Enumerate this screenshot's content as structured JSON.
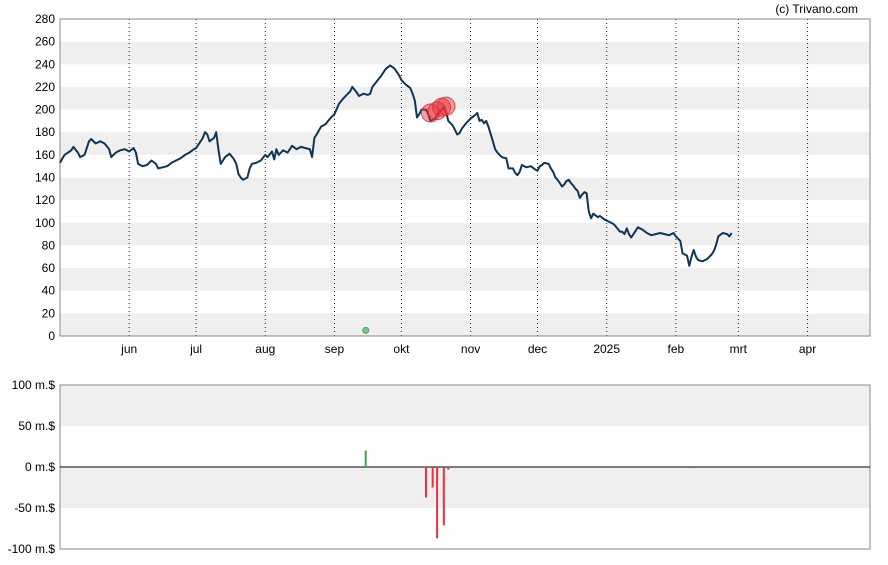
{
  "credit": "(c) Trivano.com",
  "chart_data": [
    {
      "type": "line",
      "name": "price-chart",
      "ylim": [
        0,
        280
      ],
      "y_ticks": [
        0,
        20,
        40,
        60,
        80,
        100,
        120,
        140,
        160,
        180,
        200,
        220,
        240,
        260,
        280
      ],
      "x_ticks": [
        {
          "label": "jun",
          "x": 22
        },
        {
          "label": "jul",
          "x": 52
        },
        {
          "label": "aug",
          "x": 83
        },
        {
          "label": "sep",
          "x": 114
        },
        {
          "label": "okt",
          "x": 144
        },
        {
          "label": "nov",
          "x": 175
        },
        {
          "label": "dec",
          "x": 205
        },
        {
          "label": "2025",
          "x": 236
        },
        {
          "label": "feb",
          "x": 267
        },
        {
          "label": "mrt",
          "x": 295
        },
        {
          "label": "apr",
          "x": 326
        }
      ],
      "x_range": [
        -9,
        354
      ],
      "grid": "alternating-bands",
      "series": [
        {
          "color": "#0f3557",
          "points": [
            [
              -9,
              153
            ],
            [
              -7,
              160
            ],
            [
              -4,
              164
            ],
            [
              -3,
              167
            ],
            [
              -1,
              162
            ],
            [
              0,
              158
            ],
            [
              2,
              160
            ],
            [
              4,
              172
            ],
            [
              5,
              174
            ],
            [
              7,
              170
            ],
            [
              9,
              172
            ],
            [
              11,
              170
            ],
            [
              13,
              165
            ],
            [
              14,
              158
            ],
            [
              16,
              162
            ],
            [
              18,
              164
            ],
            [
              20,
              165
            ],
            [
              22,
              163
            ],
            [
              24,
              166
            ],
            [
              25,
              162
            ],
            [
              26,
              152
            ],
            [
              28,
              150
            ],
            [
              30,
              151
            ],
            [
              32,
              155
            ],
            [
              34,
              152
            ],
            [
              35,
              148
            ],
            [
              37,
              149
            ],
            [
              39,
              150
            ],
            [
              41,
              153
            ],
            [
              43,
              155
            ],
            [
              45,
              157
            ],
            [
              47,
              160
            ],
            [
              49,
              162
            ],
            [
              51,
              165
            ],
            [
              52,
              166
            ],
            [
              54,
              172
            ],
            [
              55,
              175
            ],
            [
              56,
              180
            ],
            [
              57,
              178
            ],
            [
              58,
              172
            ],
            [
              60,
              175
            ],
            [
              61,
              180
            ],
            [
              62,
              165
            ],
            [
              63,
              152
            ],
            [
              65,
              158
            ],
            [
              67,
              161
            ],
            [
              69,
              156
            ],
            [
              70,
              152
            ],
            [
              71,
              143
            ],
            [
              72,
              140
            ],
            [
              73,
              138
            ],
            [
              75,
              140
            ],
            [
              76,
              148
            ],
            [
              77,
              152
            ],
            [
              79,
              153
            ],
            [
              81,
              155
            ],
            [
              83,
              160
            ],
            [
              84,
              158
            ],
            [
              86,
              163
            ],
            [
              87,
              156
            ],
            [
              88,
              165
            ],
            [
              89,
              160
            ],
            [
              91,
              164
            ],
            [
              93,
              162
            ],
            [
              95,
              168
            ],
            [
              97,
              165
            ],
            [
              99,
              167
            ],
            [
              101,
              166
            ],
            [
              103,
              165
            ],
            [
              104,
              158
            ],
            [
              105,
              175
            ],
            [
              106,
              178
            ],
            [
              108,
              185
            ],
            [
              110,
              187
            ],
            [
              112,
              192
            ],
            [
              114,
              196
            ],
            [
              116,
              205
            ],
            [
              118,
              210
            ],
            [
              120,
              214
            ],
            [
              121,
              216
            ],
            [
              122,
              220
            ],
            [
              124,
              215
            ],
            [
              125,
              212
            ],
            [
              127,
              214
            ],
            [
              129,
              213
            ],
            [
              130,
              214
            ],
            [
              131,
              220
            ],
            [
              133,
              225
            ],
            [
              135,
              230
            ],
            [
              137,
              236
            ],
            [
              139,
              239
            ],
            [
              141,
              236
            ],
            [
              143,
              230
            ],
            [
              144,
              226
            ],
            [
              146,
              222
            ],
            [
              148,
              219
            ],
            [
              149,
              214
            ],
            [
              150,
              208
            ],
            [
              151,
              193
            ],
            [
              152,
              196
            ],
            [
              153,
              200
            ],
            [
              155,
              200
            ],
            [
              156,
              196
            ],
            [
              157,
              190
            ],
            [
              159,
              192
            ],
            [
              161,
              198
            ],
            [
              162,
              200
            ],
            [
              163,
              202
            ],
            [
              164,
              198
            ],
            [
              165,
              190
            ],
            [
              167,
              186
            ],
            [
              168,
              182
            ],
            [
              169,
              178
            ],
            [
              170,
              179
            ],
            [
              171,
              183
            ],
            [
              173,
              188
            ],
            [
              175,
              192
            ],
            [
              177,
              195
            ],
            [
              178,
              197
            ],
            [
              179,
              190
            ],
            [
              180,
              191
            ],
            [
              181,
              188
            ],
            [
              182,
              190
            ],
            [
              183,
              185
            ],
            [
              185,
              172
            ],
            [
              186,
              165
            ],
            [
              187,
              162
            ],
            [
              188,
              160
            ],
            [
              189,
              158
            ],
            [
              191,
              157
            ],
            [
              192,
              148
            ],
            [
              194,
              148
            ],
            [
              195,
              144
            ],
            [
              196,
              142
            ],
            [
              197,
              145
            ],
            [
              198,
              151
            ],
            [
              200,
              149
            ],
            [
              202,
              150
            ],
            [
              204,
              147
            ],
            [
              205,
              146
            ],
            [
              206,
              150
            ],
            [
              207,
              151
            ],
            [
              208,
              153
            ],
            [
              210,
              152
            ],
            [
              211,
              148
            ],
            [
              212,
              145
            ],
            [
              213,
              140
            ],
            [
              214,
              138
            ],
            [
              216,
              132
            ],
            [
              217,
              134
            ],
            [
              218,
              137
            ],
            [
              219,
              138
            ],
            [
              220,
              135
            ],
            [
              221,
              133
            ],
            [
              222,
              130
            ],
            [
              223,
              128
            ],
            [
              224,
              122
            ],
            [
              225,
              125
            ],
            [
              226,
              127
            ],
            [
              227,
              126
            ],
            [
              228,
              110
            ],
            [
              229,
              104
            ],
            [
              230,
              108
            ],
            [
              232,
              105
            ],
            [
              233,
              106
            ],
            [
              235,
              103
            ],
            [
              237,
              101
            ],
            [
              239,
              99
            ],
            [
              240,
              97
            ],
            [
              242,
              92
            ],
            [
              243,
              92
            ],
            [
              244,
              90
            ],
            [
              245,
              95
            ],
            [
              246,
              90
            ],
            [
              247,
              87
            ],
            [
              248,
              90
            ],
            [
              249,
              93
            ],
            [
              250,
              96
            ],
            [
              252,
              94
            ],
            [
              254,
              91
            ],
            [
              256,
              89
            ],
            [
              258,
              90
            ],
            [
              260,
              91
            ],
            [
              262,
              90
            ],
            [
              264,
              89
            ],
            [
              266,
              91
            ],
            [
              267,
              88
            ],
            [
              269,
              84
            ],
            [
              270,
              73
            ],
            [
              272,
              71
            ],
            [
              273,
              62
            ],
            [
              274,
              70
            ],
            [
              275,
              76
            ],
            [
              276,
              70
            ],
            [
              277,
              67
            ],
            [
              279,
              66
            ],
            [
              281,
              68
            ],
            [
              283,
              72
            ],
            [
              284,
              75
            ],
            [
              285,
              80
            ],
            [
              286,
              88
            ],
            [
              288,
              91
            ],
            [
              290,
              90
            ],
            [
              291,
              88
            ],
            [
              292,
              91
            ]
          ]
        }
      ],
      "insider_markers": [
        {
          "x": 157,
          "y": 197,
          "color": "#e8303a"
        },
        {
          "x": 160,
          "y": 199,
          "color": "#e8303a"
        },
        {
          "x": 162,
          "y": 202,
          "color": "#e8303a"
        },
        {
          "x": 164,
          "y": 203,
          "color": "#e8303a"
        },
        {
          "x": 128,
          "y": 5,
          "color": "#3aa64a"
        }
      ]
    },
    {
      "type": "bar",
      "name": "insider-volume-chart",
      "ylim": [
        -100,
        100
      ],
      "y_ticks": [
        "100 m.$",
        "50 m.$",
        "0 m.$",
        "-50 m.$",
        "-100 m.$"
      ],
      "y_tick_values": [
        100,
        50,
        0,
        -50,
        -100
      ],
      "bars": [
        {
          "x": 128,
          "value": 20,
          "color": "#3aa64a"
        },
        {
          "x": 155,
          "value": -37,
          "color": "#e8303a"
        },
        {
          "x": 158,
          "value": -25,
          "color": "#e8303a"
        },
        {
          "x": 160,
          "value": -87,
          "color": "#e8303a"
        },
        {
          "x": 163,
          "value": -71,
          "color": "#e8303a"
        },
        {
          "x": 165,
          "value": -3,
          "color": "#e8303a"
        },
        {
          "x": 275,
          "value": -1,
          "color": "#e8303a"
        }
      ]
    }
  ]
}
